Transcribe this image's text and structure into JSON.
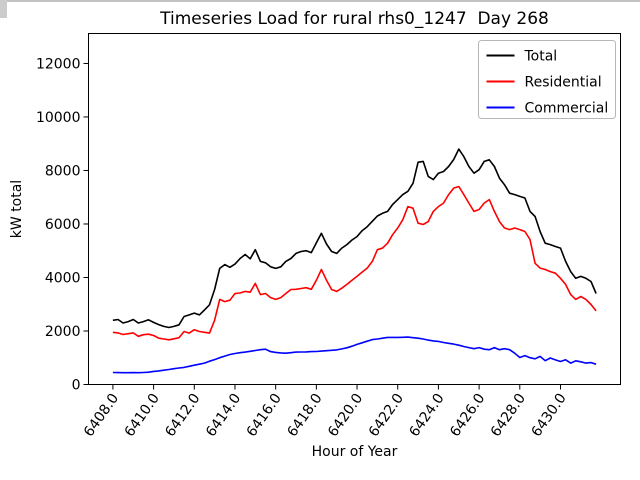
{
  "chart_data": {
    "type": "line",
    "title": "Timeseries Load for rural rhs0_1247  Day 268",
    "xlabel": "Hour of Year",
    "ylabel": "kW total",
    "x_start": 6408.0,
    "x_step": 0.25,
    "xlim": [
      6406.8,
      6432.95
    ],
    "ylim": [
      0,
      13120
    ],
    "x_ticks": [
      6408,
      6410,
      6412,
      6414,
      6416,
      6418,
      6420,
      6422,
      6424,
      6426,
      6428,
      6430
    ],
    "x_tick_labels": [
      "6408.0",
      "6410.0",
      "6412.0",
      "6414.0",
      "6416.0",
      "6418.0",
      "6420.0",
      "6422.0",
      "6424.0",
      "6426.0",
      "6428.0",
      "6430.0"
    ],
    "x_tick_rotation": -55,
    "y_ticks": [
      0,
      2000,
      4000,
      6000,
      8000,
      10000,
      12000
    ],
    "y_tick_labels": [
      "0",
      "2000",
      "4000",
      "6000",
      "8000",
      "10000",
      "12000"
    ],
    "grid": false,
    "legend": {
      "position": "upper right",
      "entries": [
        "Total",
        "Residential",
        "Commercial"
      ]
    },
    "series": [
      {
        "name": "Total",
        "color": "#000000",
        "values": [
          2400,
          2430,
          2300,
          2350,
          2430,
          2300,
          2350,
          2420,
          2320,
          2240,
          2170,
          2130,
          2170,
          2230,
          2540,
          2600,
          2670,
          2600,
          2790,
          2980,
          3550,
          4340,
          4480,
          4380,
          4500,
          4710,
          4860,
          4700,
          5040,
          4600,
          4550,
          4400,
          4340,
          4400,
          4600,
          4710,
          4900,
          4970,
          5000,
          4930,
          5300,
          5650,
          5250,
          4970,
          4900,
          5100,
          5230,
          5400,
          5530,
          5750,
          5900,
          6100,
          6300,
          6400,
          6470,
          6730,
          6910,
          7100,
          7220,
          7520,
          8310,
          8340,
          7780,
          7660,
          7900,
          7960,
          8150,
          8410,
          8800,
          8520,
          8150,
          7900,
          8030,
          8340,
          8400,
          8150,
          7710,
          7470,
          7150,
          7100,
          7030,
          6970,
          6470,
          6280,
          5720,
          5280,
          5230,
          5160,
          5100,
          4600,
          4220,
          3970,
          4040,
          3970,
          3850,
          3400
        ]
      },
      {
        "name": "Residential",
        "color": "#ff0000",
        "values": [
          1950,
          1930,
          1870,
          1900,
          1930,
          1800,
          1860,
          1880,
          1830,
          1730,
          1700,
          1670,
          1710,
          1750,
          1980,
          1920,
          2050,
          1980,
          1950,
          1920,
          2400,
          3180,
          3100,
          3150,
          3400,
          3420,
          3480,
          3450,
          3780,
          3360,
          3400,
          3250,
          3180,
          3250,
          3400,
          3550,
          3560,
          3590,
          3620,
          3560,
          3900,
          4300,
          3900,
          3550,
          3480,
          3600,
          3740,
          3900,
          4040,
          4200,
          4350,
          4600,
          5040,
          5100,
          5280,
          5600,
          5850,
          6160,
          6650,
          6590,
          6030,
          5980,
          6090,
          6470,
          6650,
          6780,
          7100,
          7340,
          7400,
          7100,
          6780,
          6470,
          6540,
          6780,
          6910,
          6470,
          6090,
          5850,
          5790,
          5850,
          5790,
          5720,
          5420,
          4530,
          4350,
          4300,
          4220,
          4160,
          3970,
          3740,
          3360,
          3180,
          3290,
          3180,
          2990,
          2750
        ]
      },
      {
        "name": "Commercial",
        "color": "#0000ff",
        "values": [
          450,
          445,
          440,
          440,
          445,
          440,
          450,
          460,
          490,
          510,
          535,
          560,
          590,
          615,
          640,
          680,
          720,
          760,
          800,
          870,
          930,
          1000,
          1060,
          1120,
          1160,
          1190,
          1210,
          1240,
          1270,
          1300,
          1320,
          1230,
          1200,
          1180,
          1170,
          1190,
          1210,
          1215,
          1220,
          1230,
          1235,
          1250,
          1265,
          1280,
          1295,
          1330,
          1370,
          1430,
          1500,
          1560,
          1620,
          1680,
          1700,
          1730,
          1760,
          1760,
          1760,
          1765,
          1770,
          1750,
          1730,
          1700,
          1660,
          1630,
          1610,
          1570,
          1540,
          1510,
          1470,
          1420,
          1380,
          1340,
          1380,
          1320,
          1300,
          1380,
          1300,
          1340,
          1300,
          1170,
          1010,
          1080,
          1000,
          960,
          1050,
          890,
          990,
          920,
          860,
          925,
          800,
          885,
          850,
          800,
          820,
          760
        ]
      }
    ]
  }
}
